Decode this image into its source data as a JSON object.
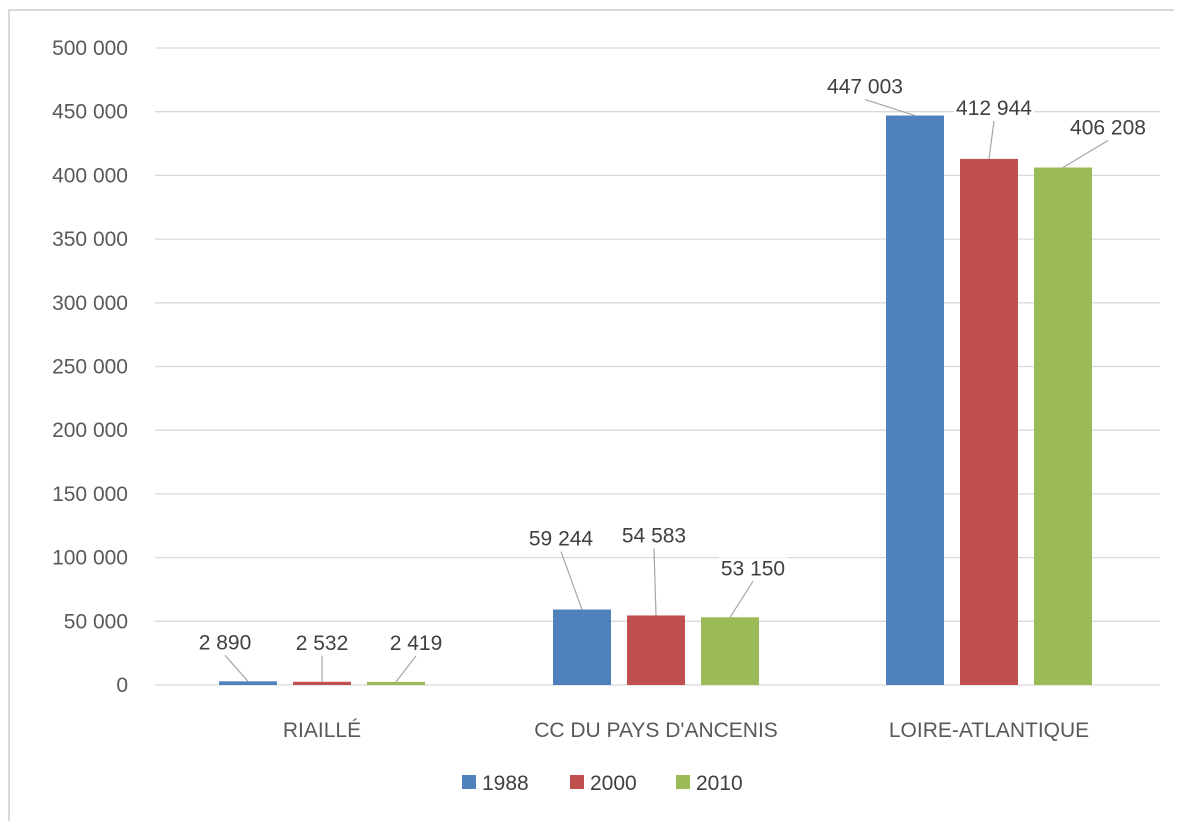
{
  "chart_data": {
    "type": "bar",
    "title": "",
    "xlabel": "",
    "ylabel": "",
    "categories": [
      "RIAILLÉ",
      "CC DU PAYS D'ANCENIS",
      "LOIRE-ATLANTIQUE"
    ],
    "series": [
      {
        "name": "1988",
        "values": [
          2890,
          59244,
          447003
        ],
        "labels": [
          "2 890",
          "59 244",
          "447 003"
        ],
        "color": "#4f81bd"
      },
      {
        "name": "2000",
        "values": [
          2532,
          54583,
          412944
        ],
        "labels": [
          "2 532",
          "54 583",
          "412 944"
        ],
        "color": "#c0504d"
      },
      {
        "name": "2010",
        "values": [
          2419,
          53150,
          406208
        ],
        "labels": [
          "2 419",
          "53 150",
          "406 208"
        ],
        "color": "#9bbb59"
      }
    ],
    "ylim": [
      0,
      500000
    ],
    "yticks": [
      0,
      50000,
      100000,
      150000,
      200000,
      250000,
      300000,
      350000,
      400000,
      450000,
      500000
    ],
    "ytick_labels": [
      "0",
      "50 000",
      "100 000",
      "150 000",
      "200 000",
      "250 000",
      "300 000",
      "350 000",
      "400 000",
      "450 000",
      "500 000"
    ],
    "grid": true,
    "legend_position": "bottom",
    "gridline_color": "#d9d9d9",
    "leader_line_color": "#a6a6a6"
  }
}
